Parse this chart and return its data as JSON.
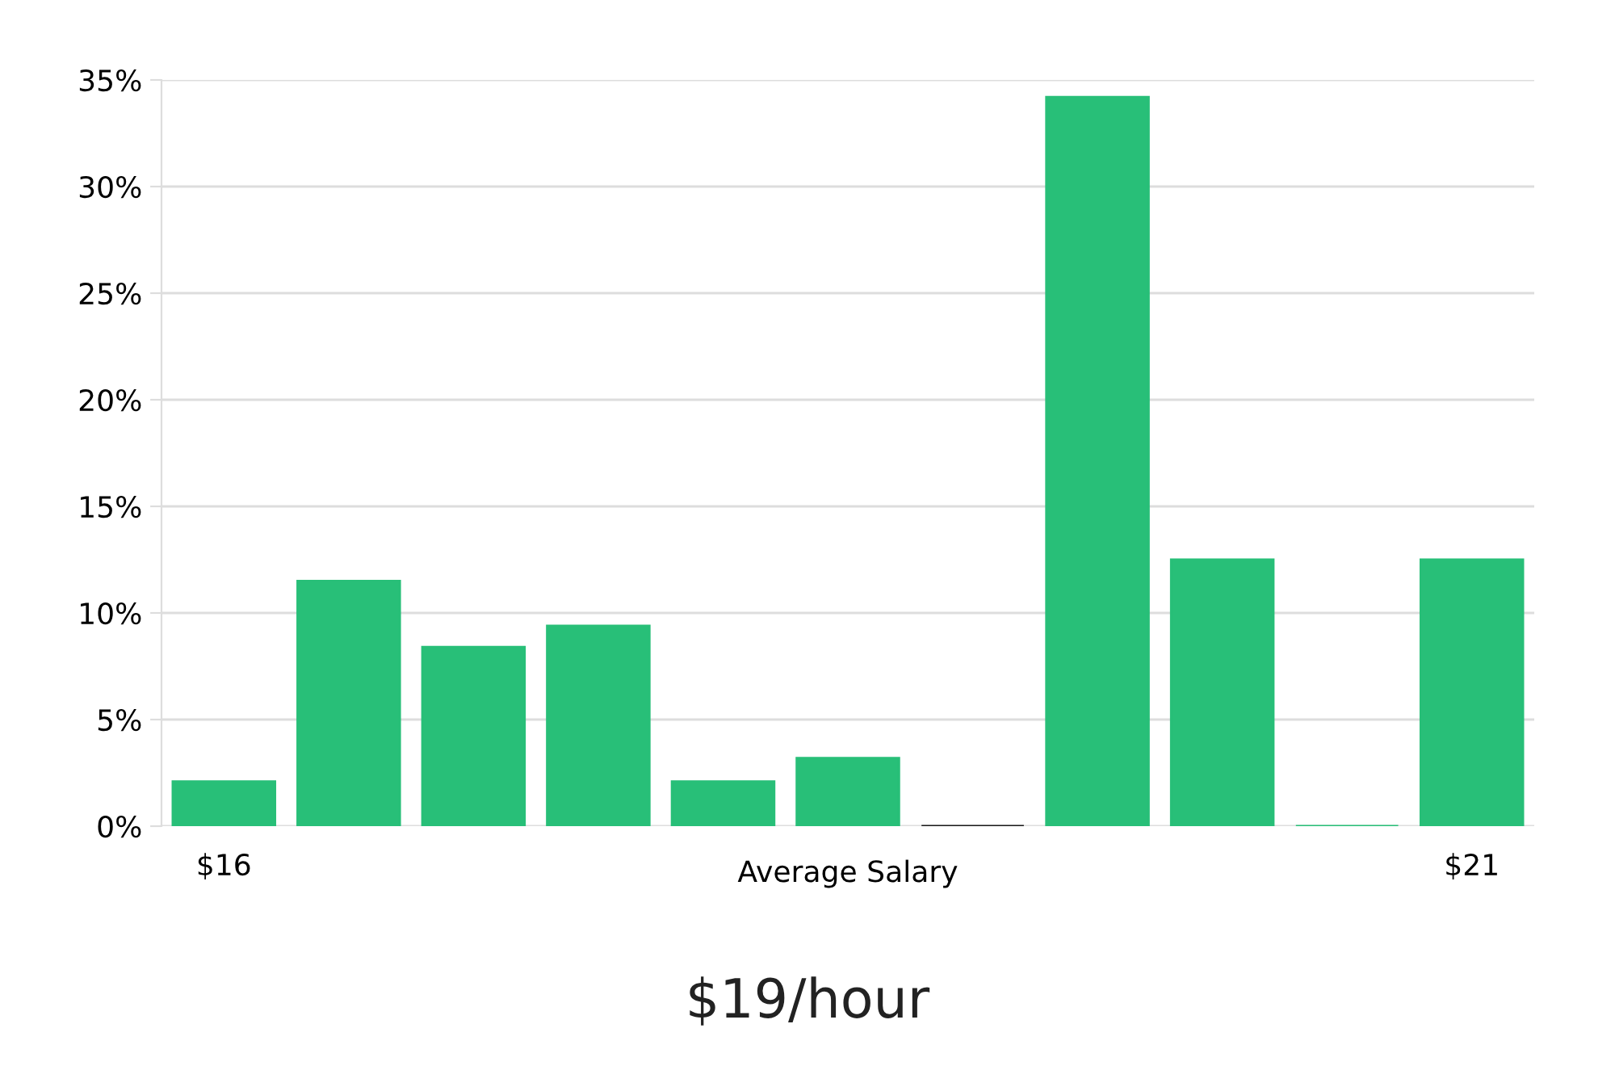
{
  "chart_data": {
    "type": "bar",
    "title": "$19/hour",
    "xlabel": "Average Salary",
    "categories": [
      "$16",
      null,
      null,
      null,
      null,
      null,
      null,
      null,
      null,
      null,
      "$21"
    ],
    "values": [
      2.1,
      11.5,
      8.4,
      9.4,
      2.1,
      3.2,
      0,
      34.2,
      12.5,
      0,
      12.5
    ],
    "colors": [
      "#28bf78",
      "#28bf78",
      "#28bf78",
      "#28bf78",
      "#28bf78",
      "#28bf78",
      "#1a1a1a",
      "#28bf78",
      "#28bf78",
      "#28bf78",
      "#28bf78"
    ],
    "ylim": [
      0,
      35
    ],
    "yticks": [
      {
        "value": 0,
        "label": "0%"
      },
      {
        "value": 5,
        "label": "5%"
      },
      {
        "value": 10,
        "label": "10%"
      },
      {
        "value": 15,
        "label": "15%"
      },
      {
        "value": 20,
        "label": "20%"
      },
      {
        "value": 25,
        "label": "25%"
      },
      {
        "value": 30,
        "label": "30%"
      },
      {
        "value": 35,
        "label": "35%"
      }
    ],
    "grid": "y"
  }
}
